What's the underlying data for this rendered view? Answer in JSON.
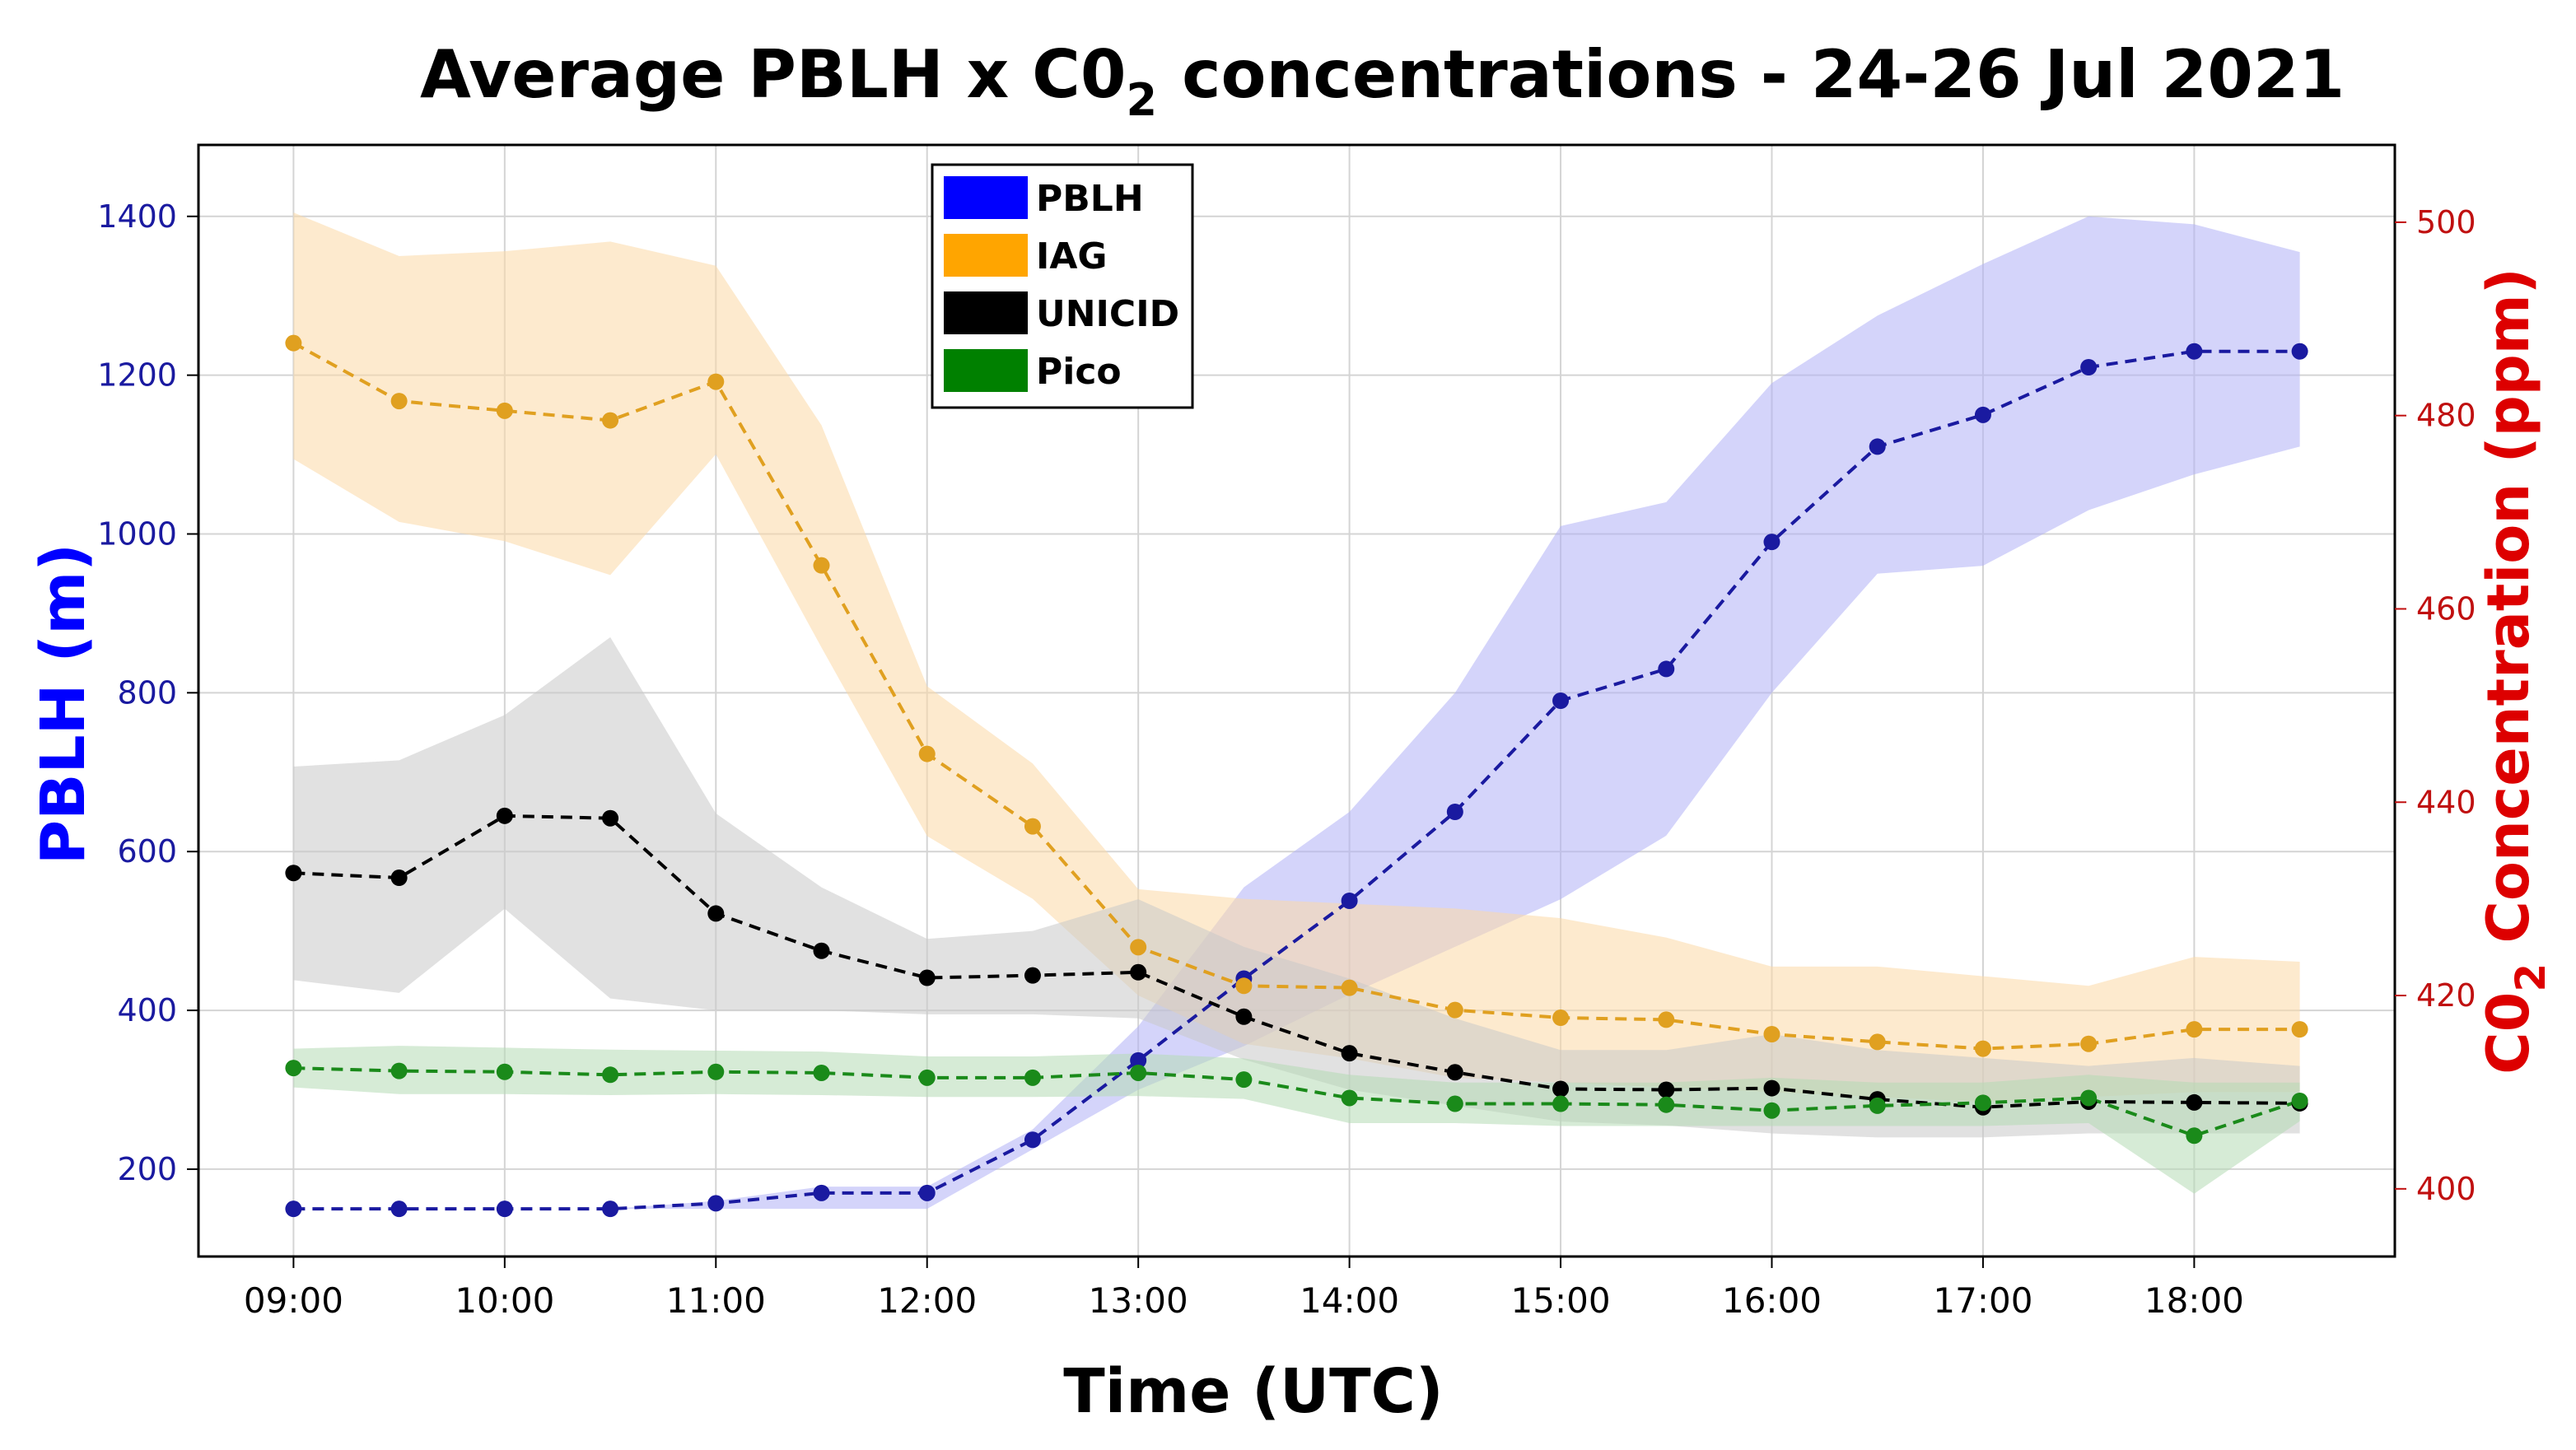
{
  "chart_data": {
    "type": "line",
    "title_main": "Average PBLH x C0",
    "title_sub": "2",
    "title_rest": "concentrations -  24-26 Jul 2021",
    "xlabel": "Time (UTC)",
    "ylabel_left": "PBLH (m)",
    "ylabel_right_main": "C0",
    "ylabel_right_sub": "2",
    "ylabel_right_rest": " Concentration (ppm)",
    "x_ticks": [
      "09:00",
      "10:00",
      "11:00",
      "12:00",
      "13:00",
      "14:00",
      "15:00",
      "16:00",
      "17:00",
      "18:00"
    ],
    "x_values": [
      9,
      9.5,
      10,
      10.5,
      11,
      11.5,
      12,
      12.5,
      13,
      13.5,
      14,
      14.5,
      15,
      15.5,
      16,
      16.5,
      17,
      17.5,
      18,
      18.5
    ],
    "xlim": [
      8.55,
      18.95
    ],
    "y_left_ticks": [
      "200",
      "400",
      "600",
      "800",
      "1000",
      "1200",
      "1400"
    ],
    "ylim_left": [
      90,
      1490
    ],
    "y_right_ticks": [
      "400",
      "420",
      "440",
      "460",
      "480",
      "500"
    ],
    "ylim_right": [
      393,
      508
    ],
    "grid": true,
    "legend_position": "top-center",
    "legend": [
      {
        "name": "PBLH",
        "color": "#0000ff"
      },
      {
        "name": "IAG",
        "color": "#ffa500"
      },
      {
        "name": "UNICID",
        "color": "#000000"
      },
      {
        "name": "Pico",
        "color": "#008000"
      }
    ],
    "series": [
      {
        "name": "PBLH",
        "axis": "left",
        "line_color": "#1a1aa0",
        "band_color": "#b0b0f5",
        "values": [
          150,
          150,
          150,
          150,
          157,
          170,
          170,
          237,
          337,
          440,
          538,
          650,
          790,
          830,
          990,
          1110,
          1150,
          1210,
          1230,
          1230
        ],
        "upper": [
          150,
          150,
          150,
          150,
          160,
          178,
          178,
          250,
          380,
          555,
          650,
          800,
          1010,
          1040,
          1190,
          1275,
          1340,
          1400,
          1390,
          1355
        ],
        "lower": [
          150,
          150,
          150,
          150,
          150,
          150,
          150,
          225,
          300,
          355,
          420,
          480,
          540,
          620,
          800,
          950,
          960,
          1030,
          1075,
          1110
        ]
      },
      {
        "name": "IAG",
        "axis": "right",
        "line_color": "#e0a020",
        "band_color": "#fbd9a6",
        "values": [
          487.5,
          481.5,
          480.5,
          479.5,
          483.5,
          464.5,
          445,
          437.5,
          425,
          421,
          420.8,
          418.5,
          417.7,
          417.5,
          416,
          415.2,
          414.5,
          415,
          416.5,
          416.5
        ],
        "upper": [
          501,
          496.5,
          497,
          498,
          495.5,
          479,
          452,
          444,
          431,
          430,
          429.5,
          429,
          428,
          426,
          423,
          423,
          422,
          421,
          424,
          423.5
        ],
        "lower": [
          475.5,
          469,
          467,
          463.5,
          476,
          456,
          436.5,
          430,
          420,
          415,
          413.5,
          411.5,
          411,
          410.5,
          410,
          409.5,
          409,
          409.5,
          410,
          410
        ]
      },
      {
        "name": "UNICID",
        "axis": "left",
        "line_color": "#000000",
        "band_color": "#c8c8c8",
        "values": [
          573,
          567,
          645,
          642,
          522,
          475,
          441,
          444,
          448,
          392,
          346,
          322,
          301,
          300,
          302,
          288,
          278,
          285,
          284,
          283
        ],
        "upper": [
          707,
          715,
          772,
          870,
          648,
          555,
          490,
          500,
          540,
          480,
          440,
          390,
          350,
          350,
          370,
          350,
          340,
          330,
          340,
          330
        ],
        "lower": [
          438,
          422,
          528,
          415,
          400,
          400,
          395,
          395,
          390,
          338,
          300,
          280,
          260,
          255,
          245,
          240,
          240,
          245,
          245,
          245
        ]
      },
      {
        "name": "Pico",
        "axis": "right",
        "line_color": "#1a8a1a",
        "band_color": "#b5dbb5",
        "values": [
          412.5,
          412.2,
          412.1,
          411.8,
          412.1,
          412,
          411.5,
          411.5,
          412,
          411.3,
          409.4,
          408.8,
          408.8,
          408.7,
          408.1,
          408.6,
          408.9,
          409.4,
          405.5,
          409.1
        ],
        "upper": [
          414.5,
          414.8,
          414.6,
          414.4,
          414.3,
          414.2,
          413.7,
          413.7,
          414,
          413.5,
          411.8,
          411,
          411,
          411,
          411.5,
          411,
          411,
          411.8,
          411,
          411
        ],
        "lower": [
          410.5,
          409.8,
          409.8,
          409.7,
          409.8,
          409.7,
          409.5,
          409.5,
          409.6,
          409.3,
          406.8,
          406.8,
          406.5,
          406.5,
          406.5,
          406.5,
          406.5,
          406.8,
          399.5,
          407
        ]
      }
    ]
  }
}
